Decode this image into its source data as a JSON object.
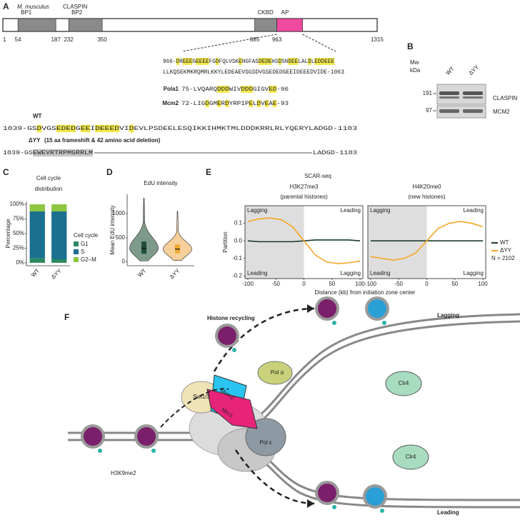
{
  "panel_a": {
    "label": "A",
    "species": "M. musculus",
    "protein": "CLASPIN",
    "length_start": 1,
    "length": 1315,
    "domains": [
      {
        "name": "BP1",
        "start": 54,
        "end": 187
      },
      {
        "name": "BP2",
        "start": 232,
        "end": 350
      },
      {
        "name": "CKBD",
        "start": 885,
        "end": 963
      },
      {
        "name": "AP"
      }
    ],
    "seq_lines": [
      "966-DREEEGEEEEFGDFQLVSKENGFASDEDEHSDSNDEELALDLEDDEEE",
      "LLKQSEKMKRQMRLKKYLEDEAEVSGSDVGSEDEDGEEIDEEEDVIDE-1063"
    ],
    "pola1": {
      "name": "Pola1",
      "seq": "75-LVQARQDDDWIVDDDGIGVED-96"
    },
    "mcm2": {
      "name": "Mcm2",
      "seq": "72-LIGDGMERDYRPIPELDVEAE-93"
    },
    "wt": {
      "name": "WT",
      "seq": "1039-GSDVGSEDEDGEEIDEEEDVIDEVLPSDEELESQIKKIHMKTMLDDDKRRLRLYQERYLADGD-1103"
    },
    "dyy": {
      "name": "ΔYY",
      "note": "(15 aa frameshift & 42 amino acid deletion)",
      "seq_start": "1039-GSEWEVRTRPMGRRLM",
      "seq_end": "LADGD-1103"
    }
  },
  "panel_b": {
    "label": "B",
    "mw": [
      "Mw",
      "kDa"
    ],
    "lanes": [
      "WT",
      "ΔYY"
    ],
    "markers": [
      "191",
      "97"
    ],
    "bands": [
      "CLASPIN",
      "MCM2"
    ]
  },
  "chart_data": [
    {
      "type": "bar",
      "stacked": true,
      "label": "C",
      "title": [
        "Cell cycle",
        "distribution"
      ],
      "ylabel": "Percentage",
      "legend_title": "Cell cycle",
      "categories": [
        "WT",
        "ΔYY"
      ],
      "ylim": [
        -5,
        105
      ],
      "yticks": [
        {
          "value": 0,
          "label": "0%"
        },
        {
          "value": 25,
          "label": "25%"
        },
        {
          "value": 50,
          "label": "50%"
        },
        {
          "value": 75,
          "label": "75%"
        },
        {
          "value": 100,
          "label": "100%"
        }
      ],
      "series": [
        {
          "name": "G1",
          "color": "#2a8a5f",
          "values": [
            8,
            6
          ]
        },
        {
          "name": "S",
          "color": "#1b6f8f",
          "values": [
            80,
            82
          ]
        },
        {
          "name": "G2–M",
          "color": "#8cc63f",
          "values": [
            12,
            12
          ]
        }
      ]
    },
    {
      "type": "violin",
      "label": "D",
      "title": "EdU intensity",
      "ylabel": "Mean EdU intensity",
      "categories": [
        "WT",
        "ΔYY"
      ],
      "colors": [
        "#7e9a8a",
        "#f6cf9a"
      ],
      "box_colors": [
        "#1f4d3a",
        "#f0a830"
      ],
      "min": [
        20,
        30
      ],
      "q1": [
        170,
        180
      ],
      "median": [
        280,
        265
      ],
      "q3": [
        420,
        360
      ],
      "max": [
        1320,
        1050
      ],
      "ylim": [
        -80,
        1400
      ],
      "yticks": [
        0,
        500,
        1000
      ]
    },
    {
      "type": "line",
      "title": [
        "H3K27me3",
        "(parental histones)"
      ],
      "x": [
        -100,
        -80,
        -60,
        -40,
        -20,
        0,
        20,
        40,
        60,
        80,
        100
      ],
      "xlim": [
        -105,
        105
      ],
      "xticks": [
        -100,
        -50,
        0,
        50,
        100
      ],
      "ylim": [
        -0.215,
        0.2
      ],
      "yticks": [
        -0.2,
        -0.1,
        {
          "value": 0,
          "label": "0.0"
        },
        0.1
      ],
      "annotations": [
        "Lagging",
        "Leading",
        "Leading",
        "Lagging"
      ],
      "series": [
        {
          "name": "WT",
          "color": "#1b3a2a",
          "values": [
            0,
            -0.005,
            -0.005,
            -0.005,
            -0.005,
            0,
            0.005,
            0.005,
            0.005,
            0.005,
            0
          ]
        },
        {
          "name": "ΔYY",
          "color": "#f5a623",
          "values": [
            0.11,
            0.125,
            0.13,
            0.12,
            0.08,
            0,
            -0.08,
            -0.12,
            -0.13,
            -0.125,
            -0.115
          ]
        }
      ]
    },
    {
      "type": "line",
      "title": [
        "H4K20me0",
        "(new histones)"
      ],
      "x": [
        -100,
        -80,
        -60,
        -40,
        -20,
        0,
        20,
        40,
        60,
        80,
        100
      ],
      "xlim": [
        -105,
        105
      ],
      "xticks": [
        -100,
        -50,
        0,
        50,
        100
      ],
      "ylim": [
        -0.215,
        0.2
      ],
      "annotations": [
        "Lagging",
        "Leading",
        "Leading",
        "Lagging"
      ],
      "series": [
        {
          "name": "WT",
          "color": "#1b3a2a",
          "values": [
            0,
            0,
            0,
            0,
            0,
            0,
            0,
            0,
            0,
            0,
            0
          ]
        },
        {
          "name": "ΔYY",
          "color": "#f5a623",
          "values": [
            -0.09,
            -0.1,
            -0.11,
            -0.1,
            -0.07,
            0,
            0.07,
            0.1,
            0.11,
            0.1,
            0.08
          ]
        }
      ]
    }
  ],
  "panel_e": {
    "label": "E",
    "title": "SCAR-seq",
    "xlabel": "Distance (kb) from initiation zone center",
    "ylabel": "Partition",
    "note": "N = 2102"
  },
  "panel_f": {
    "label": "F",
    "title": "Histone recycling",
    "lagging": "Lagging",
    "leading": "Leading",
    "mark": "H3K9me2",
    "swi": "Swi1/3",
    "mcm2": "Mcm2",
    "mrc1": "Mrc1",
    "pol_a": "Pol α",
    "pol_e": "Pol ε",
    "clr4_top": "Clr4",
    "clr4_bottom": "Clr4"
  }
}
